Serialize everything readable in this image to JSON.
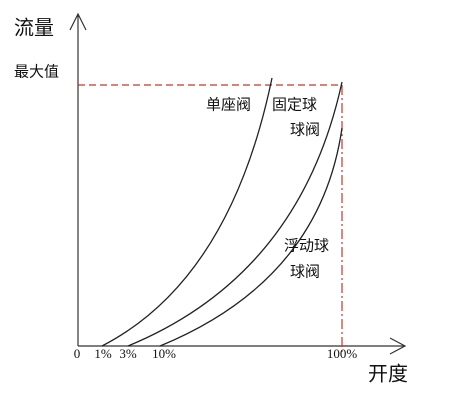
{
  "axes": {
    "y_label": "流量",
    "y_max_label": "最大值",
    "x_label": "开度",
    "x_ticks": [
      "0",
      "1%",
      "3%",
      "10%",
      "100%"
    ]
  },
  "curves": [
    {
      "label_lines": [
        "单座阀"
      ]
    },
    {
      "label_lines": [
        "固定球",
        "球阀"
      ]
    },
    {
      "label_lines": [
        "浮动球",
        "球阀"
      ]
    }
  ]
}
